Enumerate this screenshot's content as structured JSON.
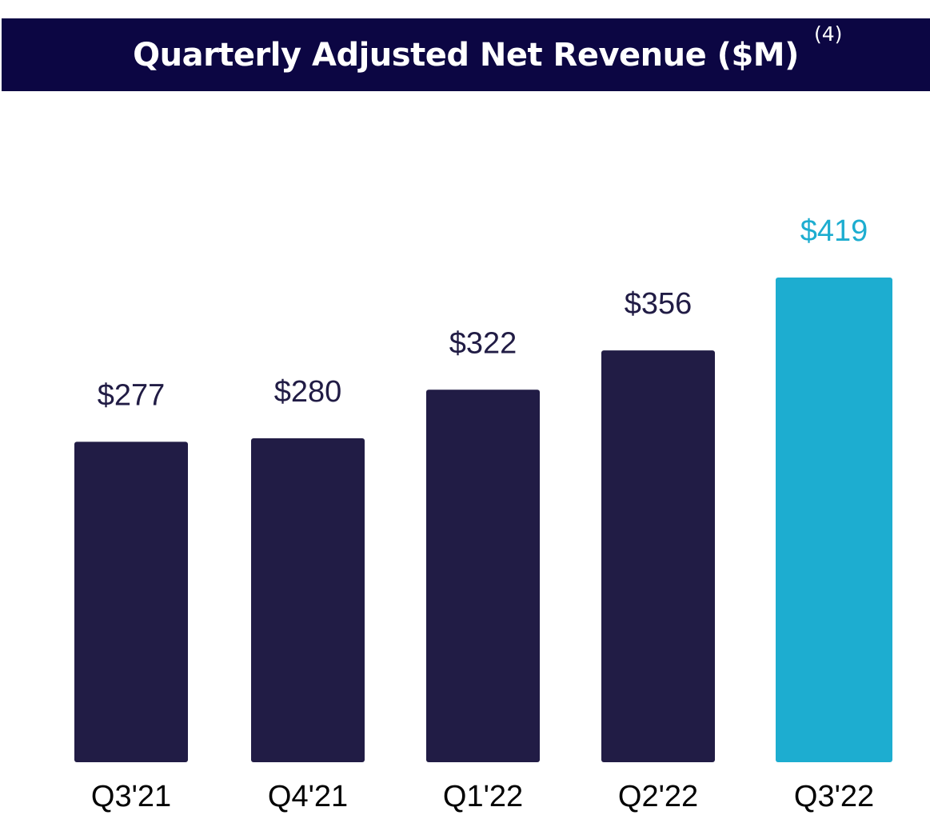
{
  "chart_data": {
    "type": "bar",
    "title": "Quarterly Adjusted Net Revenue ($M)",
    "title_note": "(4)",
    "categories": [
      "Q3'21",
      "Q4'21",
      "Q1'22",
      "Q2'22",
      "Q3'22"
    ],
    "values": [
      277,
      280,
      322,
      356,
      419
    ],
    "value_labels": [
      "$277",
      "$280",
      "$322",
      "$356",
      "$419"
    ],
    "colors": [
      "#211c45",
      "#211c45",
      "#211c45",
      "#211c45",
      "#1dadd0"
    ],
    "label_colors": [
      "#211c45",
      "#211c45",
      "#211c45",
      "#211c45",
      "#1dadd0"
    ],
    "xlabel": "",
    "ylabel": "",
    "ylim": [
      0,
      419
    ],
    "grid": false,
    "legend": "none"
  }
}
